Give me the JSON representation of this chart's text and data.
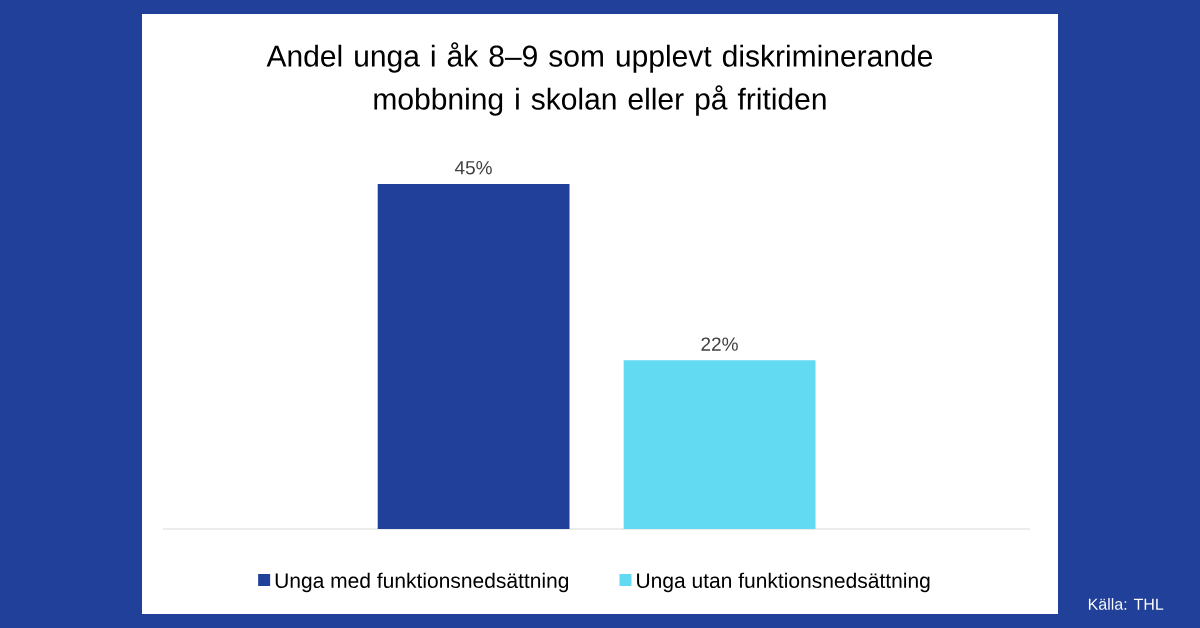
{
  "chart_data": {
    "type": "bar",
    "title": "Andel unga i åk 8–9 som upplevt diskriminerande mobbning i skolan eller på fritiden",
    "categories": [
      null
    ],
    "series": [
      {
        "name": "Unga med funktionsnedsättning",
        "color": "#21409a",
        "values": [
          45
        ],
        "value_labels": [
          "45%"
        ]
      },
      {
        "name": "Unga utan funktionsnedsättning",
        "color": "#62daf2",
        "values": [
          22
        ],
        "value_labels": [
          "22%"
        ]
      }
    ],
    "legend": "bottom",
    "annotations": [
      "Källa: THL"
    ]
  }
}
